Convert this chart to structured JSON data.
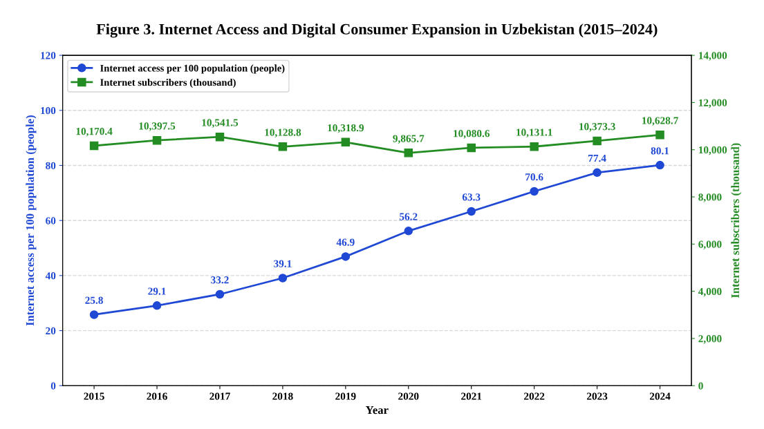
{
  "chart_data": {
    "type": "line",
    "title": "Figure 3. Internet Access and Digital Consumer Expansion in Uzbekistan (2015–2024)",
    "xlabel": "Year",
    "ylabel": "Internet access per 100 population (people)",
    "y2label": "Internet subscribers (thousand)",
    "categories": [
      "2015",
      "2016",
      "2017",
      "2018",
      "2019",
      "2020",
      "2021",
      "2022",
      "2023",
      "2024"
    ],
    "series": [
      {
        "name": "Internet access per 100 population (people)",
        "color": "#1f48d4",
        "marker": "circle",
        "values": [
          25.8,
          29.1,
          33.2,
          39.1,
          46.9,
          56.2,
          63.3,
          70.6,
          77.4,
          80.1
        ],
        "value_labels": [
          "25.8",
          "29.1",
          "33.2",
          "39.1",
          "46.9",
          "56.2",
          "63.3",
          "70.6",
          "77.4",
          "80.1"
        ]
      },
      {
        "name": "Internet subscribers (thousand)",
        "color": "#238c23",
        "marker": "square",
        "axis": "y2",
        "values": [
          10170.4,
          10397.5,
          10541.5,
          10128.8,
          10318.9,
          9865.7,
          10080.6,
          10131.1,
          10373.3,
          10628.7
        ],
        "value_labels": [
          "10,170.4",
          "10,397.5",
          "10,541.5",
          "10,128.8",
          "10,318.9",
          "9,865.7",
          "10,080.6",
          "10,131.1",
          "10,373.3",
          "10,628.7"
        ]
      }
    ],
    "ylim": [
      0,
      120
    ],
    "yticks": [
      0,
      20,
      40,
      60,
      80,
      100,
      120
    ],
    "y2lim": [
      0,
      14000
    ],
    "y2ticks": [
      0,
      {
        "value": 2000,
        "label": "2,000"
      },
      {
        "value": 4000,
        "label": "4,000"
      },
      {
        "value": 6000,
        "label": "6,000"
      },
      {
        "value": 8000,
        "label": "8,000"
      },
      {
        "value": 10000,
        "label": "10,000"
      },
      {
        "value": 12000,
        "label": "12,000"
      },
      {
        "value": 14000,
        "label": "14,000"
      }
    ],
    "grid": "y",
    "legend": "top left",
    "line_style": "solid"
  }
}
